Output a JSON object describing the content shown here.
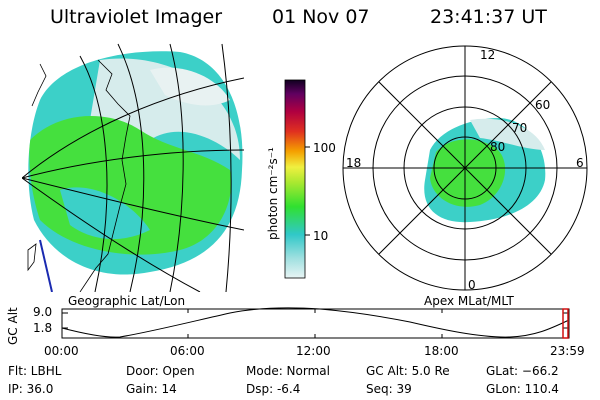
{
  "header": {
    "instrument": "Ultraviolet Imager",
    "date": "01 Nov 07",
    "time": "23:41:37 UT"
  },
  "colorbar": {
    "unit_label": "photon cm⁻²s⁻¹",
    "tick_100": "100",
    "tick_10": "10"
  },
  "left_panel": {
    "caption": "Geographic Lat/Lon"
  },
  "right_panel": {
    "caption": "Apex MLat/MLT",
    "mlt_12": "12",
    "mlt_18": "18",
    "mlt_6": "6",
    "mlt_0": "0",
    "lat_60": "60",
    "lat_70": "70",
    "lat_80": "80"
  },
  "altitude_plot": {
    "ylabel": "GC Alt",
    "y_top": "9.0",
    "y_bottom": "1.8",
    "x_ticks": [
      "00:00",
      "06:00",
      "12:00",
      "18:00",
      "23:59"
    ]
  },
  "status": {
    "filter": "Flt: LBHL",
    "ip": "IP: 36.0",
    "door": "Door: Open",
    "gain": "Gain: 14",
    "mode": "Mode: Normal",
    "dsp": "Dsp:    -6.4",
    "gc_alt": "GC Alt: 5.0 Re",
    "seq": "Seq: 39",
    "glat": "GLat: −66.2",
    "glon": "GLon: 110.4"
  },
  "colors": {
    "aurora_cyan": "#3cd0c8",
    "aurora_green": "#3ee640",
    "aurora_pale": "#cfe8e8",
    "marker_red": "#d01010",
    "coast_blue": "#1a2ab0"
  }
}
